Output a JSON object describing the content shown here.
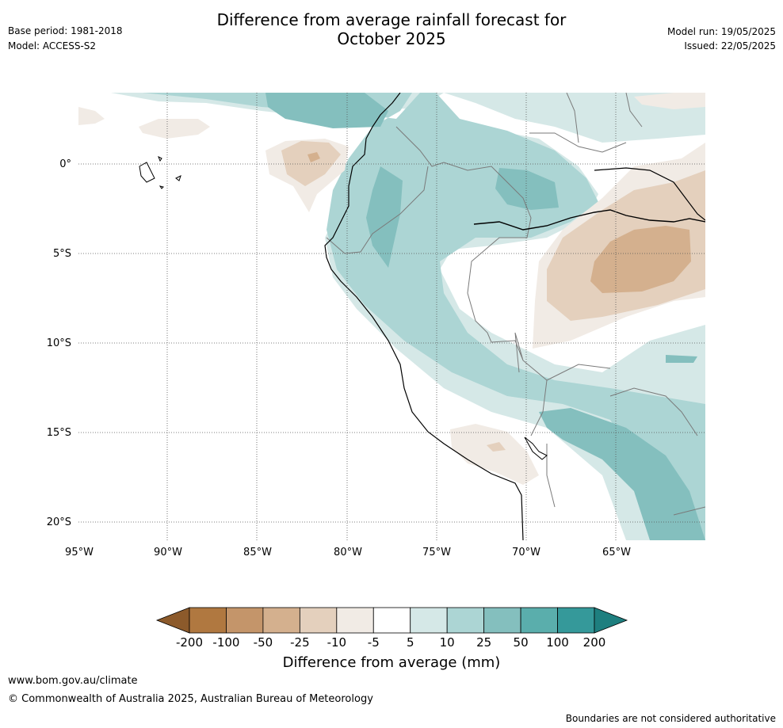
{
  "title": {
    "line1": "Difference from average rainfall forecast for",
    "line2": "October 2025"
  },
  "meta_left": {
    "base_period": "Base period: 1981-2018",
    "model": "Model: ACCESS-S2"
  },
  "meta_right": {
    "model_run": "Model run: 19/05/2025",
    "issued": "Issued: 22/05/2025"
  },
  "axes": {
    "lat_labels": [
      "0°",
      "5°S",
      "10°S",
      "15°S",
      "20°S"
    ],
    "lon_labels": [
      "95°W",
      "90°W",
      "85°W",
      "80°W",
      "75°W",
      "70°W",
      "65°W"
    ]
  },
  "colorbar": {
    "label": "Difference from average (mm)",
    "ticks": [
      "-200",
      "-100",
      "-50",
      "-25",
      "-10",
      "-5",
      "5",
      "10",
      "25",
      "50",
      "100",
      "200"
    ],
    "colors": [
      "#8c5a2b",
      "#b07840",
      "#c4956a",
      "#d4b08e",
      "#e4d0bd",
      "#f1ebe5",
      "#ffffff",
      "#d5e8e7",
      "#acd5d4",
      "#84bfbe",
      "#5aaeac",
      "#35999a",
      "#1e7f7f"
    ]
  },
  "footer": {
    "url": "www.bom.gov.au/climate",
    "copyright": "© Commonwealth of Australia 2025, Australian Bureau of Meteorology",
    "disclaimer": "Boundaries are not considered authoritative"
  }
}
